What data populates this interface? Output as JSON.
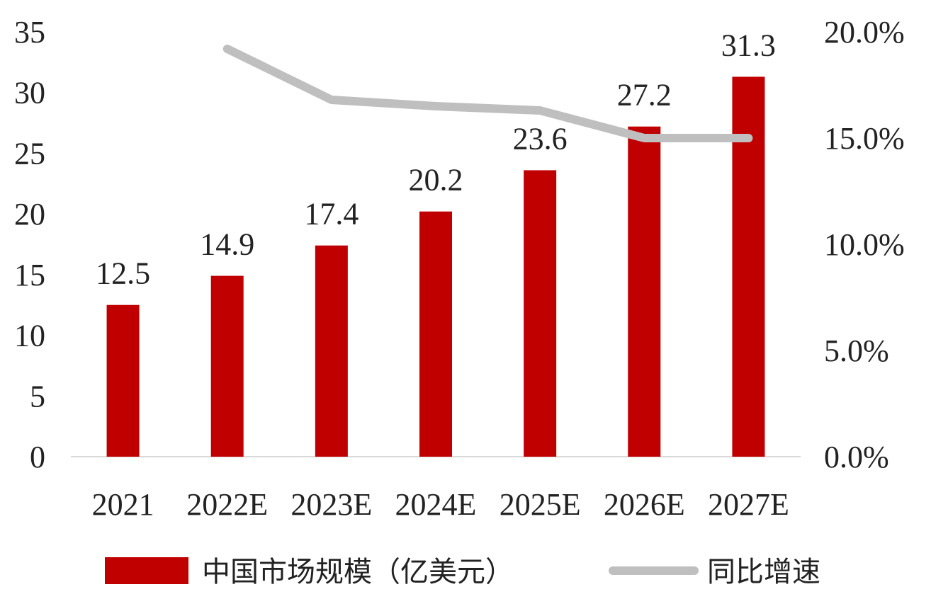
{
  "chart_data": {
    "type": "bar",
    "categories": [
      "2021",
      "2022E",
      "2023E",
      "2024E",
      "2025E",
      "2026E",
      "2027E"
    ],
    "series": [
      {
        "name": "中国市场规模（亿美元）",
        "type": "bar",
        "axis": "left",
        "color": "#c00000",
        "values": [
          12.5,
          14.9,
          17.4,
          20.2,
          23.6,
          27.2,
          31.3
        ],
        "data_labels": [
          "12.5",
          "14.9",
          "17.4",
          "20.2",
          "23.6",
          "27.2",
          "31.3"
        ]
      },
      {
        "name": "同比增速",
        "type": "line",
        "axis": "right",
        "color": "#bfbfbf",
        "values": [
          null,
          19.2,
          16.8,
          16.5,
          16.3,
          15.0,
          15.0
        ]
      }
    ],
    "y_left": {
      "min": 0,
      "max": 35,
      "ticks": [
        0,
        5,
        10,
        15,
        20,
        25,
        30,
        35
      ]
    },
    "y_right": {
      "min": 0,
      "max": 20,
      "ticks": [
        "0.0%",
        "5.0%",
        "10.0%",
        "15.0%",
        "20.0%"
      ]
    },
    "grid": false,
    "legend": "bottom"
  }
}
